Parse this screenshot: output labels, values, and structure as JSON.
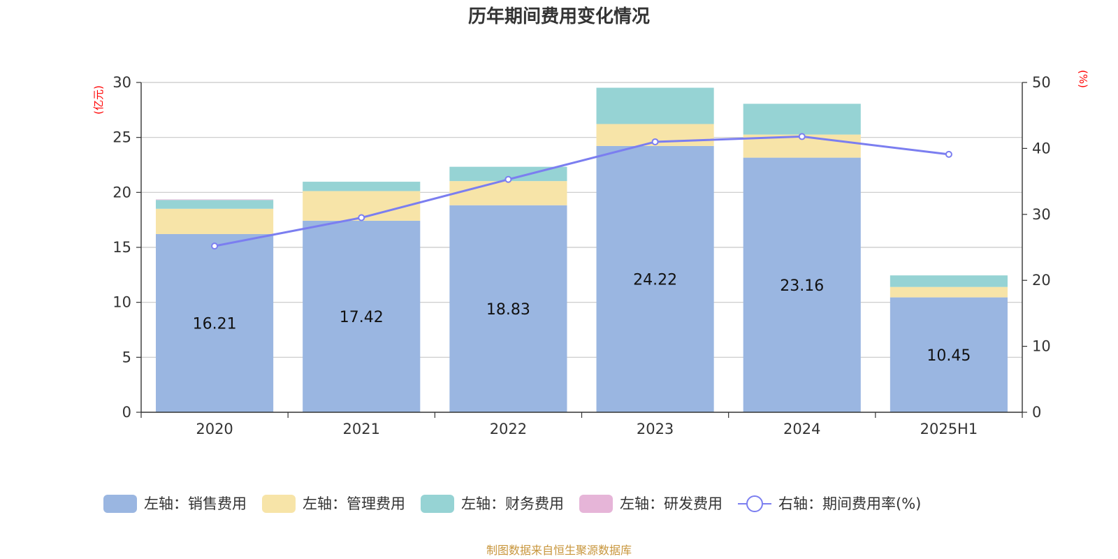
{
  "title": "历年期间费用变化情况",
  "source_note": "制图数据来自恒生聚源数据库",
  "colors": {
    "sales": "#9ab6e1",
    "admin": "#f7e4a8",
    "finance": "#96d3d4",
    "rd": "#e6b5d8",
    "rate_line": "#7b7ef0",
    "unit_text": "#ff0000",
    "source_text": "#c8963c"
  },
  "chart_data": {
    "type": "bar",
    "stacked": true,
    "categories": [
      "2020",
      "2021",
      "2022",
      "2023",
      "2024",
      "2025H1"
    ],
    "left_axis": {
      "unit": "(亿元)",
      "ylim": [
        0,
        30
      ],
      "ticks": [
        0,
        5,
        10,
        15,
        20,
        25,
        30
      ]
    },
    "right_axis": {
      "unit": "(%)",
      "ylim": [
        0,
        50
      ],
      "ticks": [
        0,
        10,
        20,
        30,
        40,
        50
      ]
    },
    "grid": true,
    "legend_position": "bottom",
    "series": [
      {
        "name": "左轴：销售费用",
        "axis": "left",
        "color_key": "sales",
        "values": [
          16.21,
          17.42,
          18.83,
          24.22,
          23.16,
          10.45
        ],
        "show_labels": true
      },
      {
        "name": "左轴：管理费用",
        "axis": "left",
        "color_key": "admin",
        "values": [
          2.3,
          2.7,
          2.2,
          2.0,
          2.1,
          0.95
        ]
      },
      {
        "name": "左轴：财务费用",
        "axis": "left",
        "color_key": "finance",
        "values": [
          0.8,
          0.85,
          1.3,
          3.3,
          2.8,
          1.05
        ]
      },
      {
        "name": "左轴：研发费用",
        "axis": "left",
        "color_key": "rd",
        "values": [
          0.05,
          0,
          0,
          0,
          0,
          0
        ]
      },
      {
        "name": "右轴：期间费用率(%)",
        "axis": "right",
        "type": "line",
        "color_key": "rate_line",
        "values": [
          25.2,
          29.5,
          35.3,
          41.0,
          41.8,
          39.1
        ]
      }
    ]
  }
}
